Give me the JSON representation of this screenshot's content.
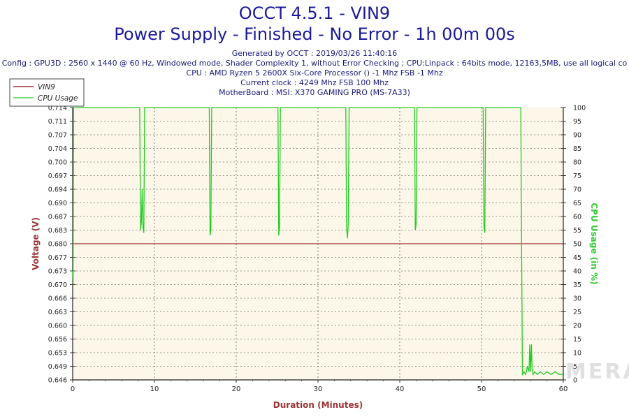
{
  "header": {
    "title": "OCCT 4.5.1 - VIN9",
    "subtitle": "Power Supply - Finished - No Error - 1h 00m 00s",
    "generated": "Generated by OCCT : 2019/03/26 11:40:16",
    "config": "Config : GPU3D : 2560 x 1440 @ 60 Hz, Windowed mode, Shader Complexity 1, without Error Checking ; CPU:Linpack : 64bits mode, 12163,5MB, use all logical co",
    "cpu": "CPU : AMD Ryzen 5 2600X Six-Core Processor () -1 Mhz FSB -1 Mhz",
    "clock": "Current clock : 4249 Mhz FSB 100 Mhz",
    "motherboard": "MotherBoard : MSI: X370 GAMING PRO (MS-7A33)"
  },
  "watermark": "HARDWAREMERA",
  "colors": {
    "vin9": "#800000",
    "cpu": "#22cc22",
    "title": "#1a1a9a",
    "axis_label": "#993333",
    "plot_bg": "#fdf7e9"
  },
  "chart_data": {
    "type": "line",
    "title": "OCCT 4.5.1 - VIN9",
    "xlabel": "Duration (Minutes)",
    "ylabel": "Voltage (V)",
    "y2label": "CPU Usage (in %)",
    "xlim": [
      0,
      60
    ],
    "ylim": [
      0.646,
      0.714
    ],
    "y2lim": [
      0,
      100
    ],
    "xticks": [
      "0",
      "10",
      "20",
      "30",
      "40",
      "50",
      "60"
    ],
    "yticks": [
      "0.646",
      "0.649",
      "0.653",
      "0.656",
      "0.660",
      "0.663",
      "0.666",
      "0.670",
      "0.673",
      "0.677",
      "0.680",
      "0.683",
      "0.687",
      "0.690",
      "0.694",
      "0.697",
      "0.700",
      "0.704",
      "0.707",
      "0.711",
      "0.714"
    ],
    "y2ticks": [
      "0",
      "5",
      "10",
      "15",
      "20",
      "25",
      "30",
      "35",
      "40",
      "45",
      "50",
      "55",
      "60",
      "65",
      "70",
      "75",
      "80",
      "85",
      "90",
      "95",
      "100"
    ],
    "legend": {
      "position": "top-left",
      "entries": [
        "VIN9",
        "CPU Usage"
      ]
    },
    "grid": true,
    "series": [
      {
        "name": "VIN9",
        "axis": "left",
        "color": "#800000",
        "x": [
          0,
          60
        ],
        "y": [
          0.68,
          0.68
        ]
      },
      {
        "name": "CPU Usage",
        "axis": "right",
        "color": "#22cc22",
        "x": [
          0,
          0.05,
          0.1,
          0.3,
          0.4,
          8.2,
          8.3,
          8.4,
          8.5,
          8.6,
          8.7,
          8.8,
          8.9,
          9.0,
          9.1,
          16.7,
          16.8,
          16.9,
          17.0,
          17.1,
          25.1,
          25.2,
          25.3,
          25.4,
          25.5,
          33.4,
          33.5,
          33.6,
          33.7,
          33.8,
          33.9,
          41.8,
          41.9,
          42.0,
          42.1,
          42.2,
          50.2,
          50.3,
          50.4,
          50.5,
          50.6,
          54.8,
          54.9,
          55.0,
          55.2,
          55.4,
          55.6,
          55.8,
          55.9,
          56.0,
          56.1,
          56.2,
          56.3,
          56.5,
          56.8,
          57.2,
          57.6,
          58.0,
          58.5,
          59.0,
          59.5,
          60.0
        ],
        "y": [
          40,
          35,
          100,
          100,
          100,
          100,
          55,
          58,
          70,
          56,
          54,
          100,
          100,
          100,
          100,
          100,
          53,
          55,
          100,
          100,
          100,
          53,
          56,
          100,
          100,
          100,
          56,
          52,
          57,
          100,
          100,
          100,
          55,
          57,
          100,
          100,
          100,
          56,
          54,
          100,
          100,
          100,
          50,
          2,
          3,
          2,
          5,
          3,
          13,
          3,
          13,
          4,
          2,
          3,
          2,
          3,
          2,
          3,
          2,
          3,
          2,
          2
        ]
      }
    ]
  }
}
